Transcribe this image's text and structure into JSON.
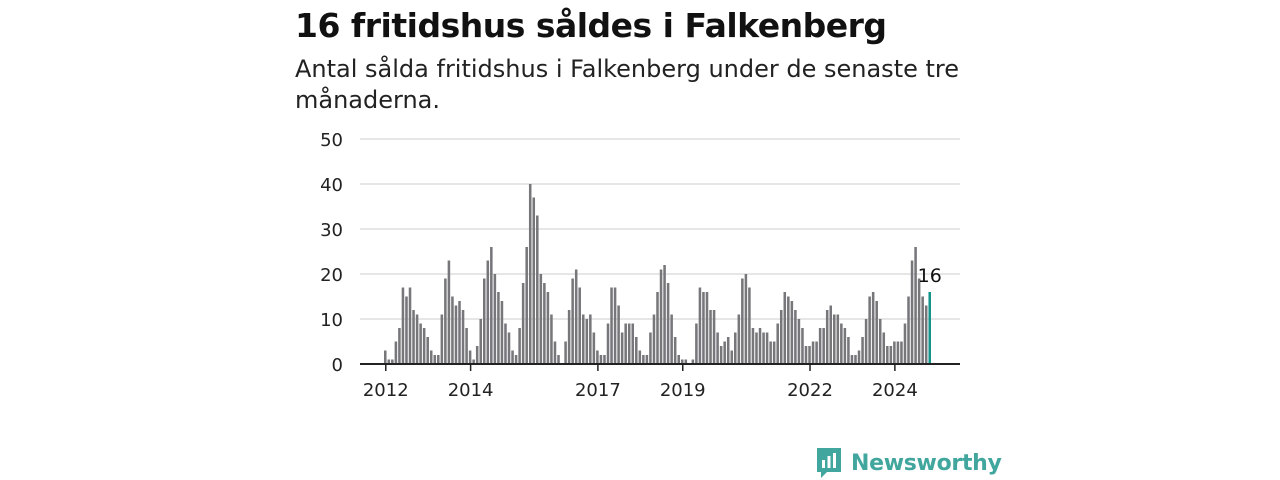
{
  "header": {
    "title": "16 fritidshus såldes i Falkenberg",
    "subtitle": "Antal sålda fritidshus i Falkenberg under de senaste tre månaderna."
  },
  "brand": {
    "name": "Newsworthy",
    "icon": "newsworthy-logo-icon",
    "color": "#41a69d"
  },
  "chart_data": {
    "type": "bar",
    "title": "16 fritidshus såldes i Falkenberg",
    "subtitle": "Antal sålda fritidshus i Falkenberg under de senaste tre månaderna.",
    "xlabel": "",
    "ylabel": "",
    "ylim": [
      0,
      50
    ],
    "yticks": [
      0,
      10,
      20,
      30,
      40,
      50
    ],
    "grid": true,
    "legend": "none",
    "x_tick_labels": [
      "2012",
      "2014",
      "2017",
      "2019",
      "2022",
      "2024"
    ],
    "bar_color": "#77767b",
    "highlight_color": "#13938a",
    "highlight_label": "16",
    "series": [
      {
        "values": [
          3,
          1,
          1,
          5,
          8,
          17,
          15,
          17,
          12,
          11,
          9,
          8,
          6,
          3,
          2,
          2,
          11,
          19,
          23,
          15,
          13,
          14,
          12,
          8,
          3,
          1,
          4,
          10,
          19,
          23,
          26,
          20,
          16,
          14,
          9,
          7,
          3,
          2,
          8,
          18,
          26,
          40,
          37,
          33,
          20,
          18,
          16,
          11,
          5,
          2,
          0,
          5,
          12,
          19,
          21,
          17,
          11,
          10,
          11,
          7,
          3,
          2,
          2,
          9,
          17,
          17,
          13,
          7,
          9,
          9,
          9,
          6,
          3,
          2,
          2,
          7,
          11,
          16,
          21,
          22,
          18,
          11,
          6,
          2,
          1,
          1,
          0,
          1,
          9,
          17,
          16,
          16,
          12,
          12,
          7,
          4,
          5,
          6,
          3,
          7,
          11,
          19,
          20,
          17,
          8,
          7,
          8,
          7,
          7,
          5,
          5,
          9,
          12,
          16,
          15,
          14,
          12,
          10,
          8,
          4,
          4,
          5,
          5,
          8,
          8,
          12,
          13,
          11,
          11,
          9,
          8,
          6,
          2,
          2,
          3,
          6,
          10,
          15,
          16,
          14,
          10,
          7,
          4,
          4,
          5,
          5,
          5,
          9,
          15,
          23,
          26,
          19,
          15,
          13,
          16
        ]
      }
    ]
  }
}
